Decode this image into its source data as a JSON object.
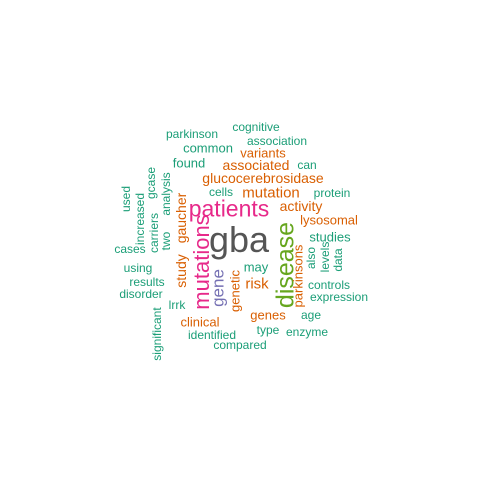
{
  "colors": {
    "teal": "#1b9e77",
    "orange": "#d95f02",
    "magenta": "#e7298a",
    "purple": "#7570b3",
    "green": "#66a61e",
    "gray": "#555555"
  },
  "words": [
    {
      "text": "gba",
      "color": "#555555"
    },
    {
      "text": "disease",
      "color": "#66a61e"
    },
    {
      "text": "patients",
      "color": "#e7298a"
    },
    {
      "text": "mutations",
      "color": "#e7298a"
    },
    {
      "text": "gene",
      "color": "#7570b3"
    },
    {
      "text": "mutation",
      "color": "#d95f02"
    },
    {
      "text": "glucocerebrosidase",
      "color": "#d95f02"
    },
    {
      "text": "associated",
      "color": "#d95f02"
    },
    {
      "text": "variants",
      "color": "#d95f02"
    },
    {
      "text": "activity",
      "color": "#d95f02"
    },
    {
      "text": "lysosomal",
      "color": "#d95f02"
    },
    {
      "text": "gaucher",
      "color": "#d95f02"
    },
    {
      "text": "study",
      "color": "#d95f02"
    },
    {
      "text": "genetic",
      "color": "#d95f02"
    },
    {
      "text": "risk",
      "color": "#d95f02"
    },
    {
      "text": "parkinsons",
      "color": "#d95f02"
    },
    {
      "text": "genes",
      "color": "#d95f02"
    },
    {
      "text": "clinical",
      "color": "#d95f02"
    },
    {
      "text": "cognitive",
      "color": "#1b9e77"
    },
    {
      "text": "parkinson",
      "color": "#1b9e77"
    },
    {
      "text": "association",
      "color": "#1b9e77"
    },
    {
      "text": "common",
      "color": "#1b9e77"
    },
    {
      "text": "found",
      "color": "#1b9e77"
    },
    {
      "text": "can",
      "color": "#1b9e77"
    },
    {
      "text": "cells",
      "color": "#1b9e77"
    },
    {
      "text": "protein",
      "color": "#1b9e77"
    },
    {
      "text": "gcase",
      "color": "#1b9e77"
    },
    {
      "text": "used",
      "color": "#1b9e77"
    },
    {
      "text": "increased",
      "color": "#1b9e77"
    },
    {
      "text": "carriers",
      "color": "#1b9e77"
    },
    {
      "text": "two",
      "color": "#1b9e77"
    },
    {
      "text": "analysis",
      "color": "#1b9e77"
    },
    {
      "text": "studies",
      "color": "#1b9e77"
    },
    {
      "text": "cases",
      "color": "#1b9e77"
    },
    {
      "text": "also",
      "color": "#1b9e77"
    },
    {
      "text": "levels",
      "color": "#1b9e77"
    },
    {
      "text": "data",
      "color": "#1b9e77"
    },
    {
      "text": "using",
      "color": "#1b9e77"
    },
    {
      "text": "may",
      "color": "#1b9e77"
    },
    {
      "text": "results",
      "color": "#1b9e77"
    },
    {
      "text": "controls",
      "color": "#1b9e77"
    },
    {
      "text": "disorder",
      "color": "#1b9e77"
    },
    {
      "text": "expression",
      "color": "#1b9e77"
    },
    {
      "text": "lrrk",
      "color": "#1b9e77"
    },
    {
      "text": "age",
      "color": "#1b9e77"
    },
    {
      "text": "significant",
      "color": "#1b9e77"
    },
    {
      "text": "type",
      "color": "#1b9e77"
    },
    {
      "text": "enzyme",
      "color": "#1b9e77"
    },
    {
      "text": "identified",
      "color": "#1b9e77"
    },
    {
      "text": "compared",
      "color": "#1b9e77"
    }
  ]
}
